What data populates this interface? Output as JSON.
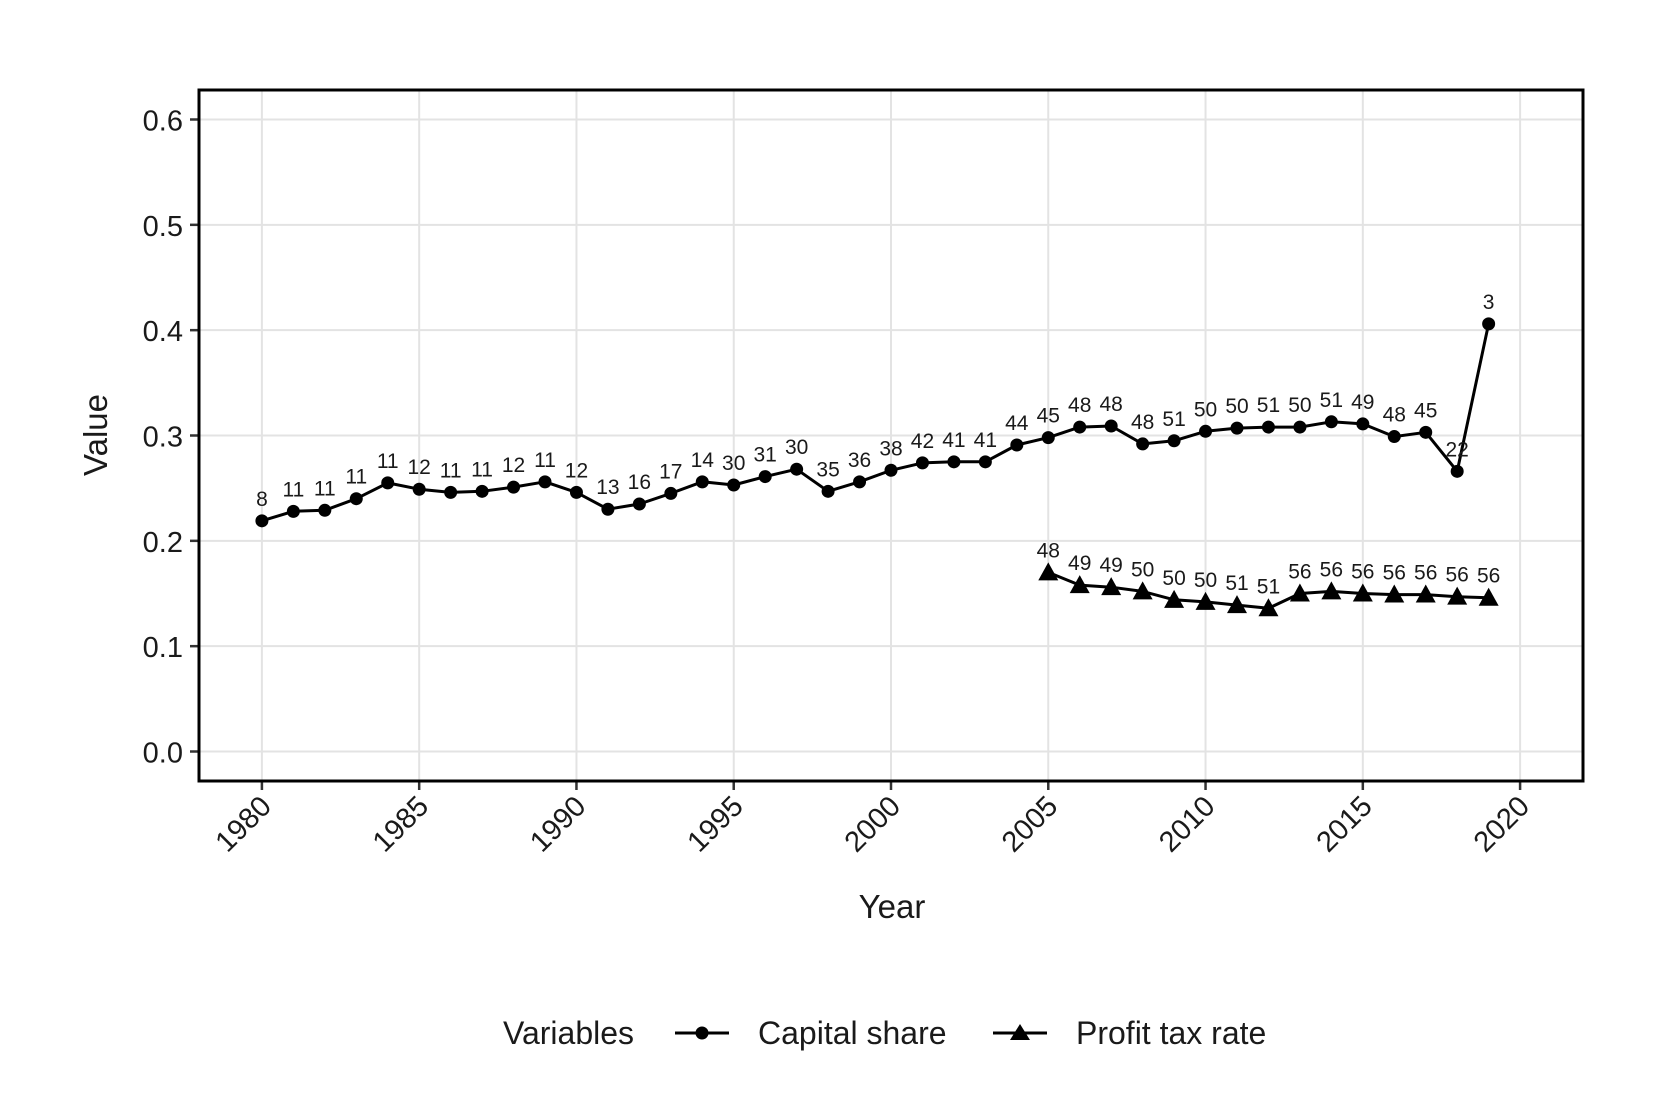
{
  "chart_data": {
    "type": "line",
    "title": "",
    "xlabel": "Year",
    "ylabel": "Value",
    "xlim": [
      1978,
      2022
    ],
    "ylim": [
      -0.028,
      0.628
    ],
    "x_ticks": [
      1980,
      1985,
      1990,
      1995,
      2000,
      2005,
      2010,
      2015,
      2020
    ],
    "y_ticks": [
      0.0,
      0.1,
      0.2,
      0.3,
      0.4,
      0.5,
      0.6
    ],
    "y_tick_labels": [
      "0.0",
      "0.1",
      "0.2",
      "0.3",
      "0.4",
      "0.5",
      "0.6"
    ],
    "grid": true,
    "legend": {
      "title": "Variables",
      "position": "bottom"
    },
    "series": [
      {
        "name": "Capital share",
        "marker": "circle",
        "x": [
          1980,
          1981,
          1982,
          1983,
          1984,
          1985,
          1986,
          1987,
          1988,
          1989,
          1990,
          1991,
          1992,
          1993,
          1994,
          1995,
          1996,
          1997,
          1998,
          1999,
          2000,
          2001,
          2002,
          2003,
          2004,
          2005,
          2006,
          2007,
          2008,
          2009,
          2010,
          2011,
          2012,
          2013,
          2014,
          2015,
          2016,
          2017,
          2018,
          2019
        ],
        "values": [
          0.219,
          0.228,
          0.229,
          0.24,
          0.255,
          0.249,
          0.246,
          0.247,
          0.251,
          0.256,
          0.246,
          0.23,
          0.235,
          0.245,
          0.256,
          0.253,
          0.261,
          0.268,
          0.247,
          0.256,
          0.267,
          0.274,
          0.275,
          0.275,
          0.291,
          0.298,
          0.308,
          0.309,
          0.292,
          0.295,
          0.304,
          0.307,
          0.308,
          0.308,
          0.313,
          0.311,
          0.299,
          0.303,
          0.266,
          0.406
        ],
        "labels": [
          "8",
          "11",
          "11",
          "11",
          "11",
          "12",
          "11",
          "11",
          "12",
          "11",
          "12",
          "13",
          "16",
          "17",
          "14",
          "30",
          "31",
          "30",
          "35",
          "36",
          "38",
          "42",
          "41",
          "41",
          "44",
          "45",
          "48",
          "48",
          "48",
          "51",
          "50",
          "50",
          "51",
          "50",
          "51",
          "49",
          "48",
          "45",
          "22",
          "3"
        ]
      },
      {
        "name": "Profit tax rate",
        "marker": "triangle",
        "x": [
          2005,
          2006,
          2007,
          2008,
          2009,
          2010,
          2011,
          2012,
          2013,
          2014,
          2015,
          2016,
          2017,
          2018,
          2019
        ],
        "values": [
          0.17,
          0.158,
          0.156,
          0.152,
          0.144,
          0.142,
          0.139,
          0.136,
          0.15,
          0.152,
          0.15,
          0.149,
          0.149,
          0.147,
          0.146
        ],
        "labels": [
          "48",
          "49",
          "49",
          "50",
          "50",
          "50",
          "51",
          "51",
          "56",
          "56",
          "56",
          "56",
          "56",
          "56",
          "56"
        ]
      }
    ]
  }
}
